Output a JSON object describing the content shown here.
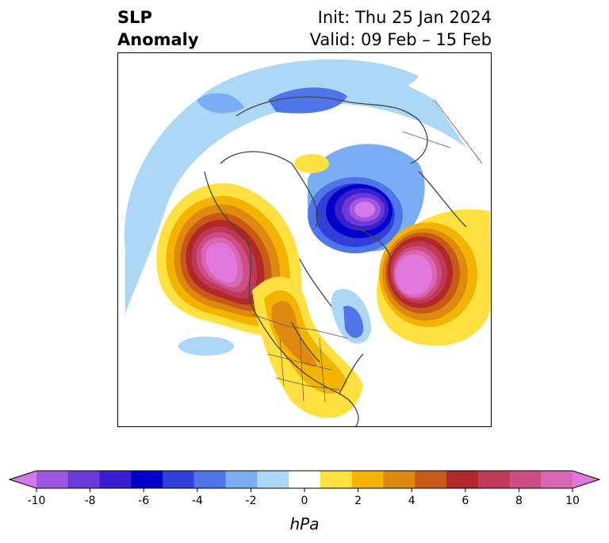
{
  "title": {
    "left_line1": "SLP",
    "left_line2": "Anomaly",
    "right_line1": "Init: Thu 25 Jan 2024",
    "right_line2": "Valid: 09 Feb – 15 Feb"
  },
  "colorbar": {
    "unit": "hPa",
    "ticks": [
      "-10",
      "-8",
      "-6",
      "-4",
      "-2",
      "0",
      "2",
      "4",
      "6",
      "8",
      "10"
    ],
    "colors": [
      "#d479e8",
      "#9d57e0",
      "#6a3ad8",
      "#3a1fd0",
      "#0000c8",
      "#2f3fd8",
      "#4f75e8",
      "#7aaef2",
      "#acd8f6",
      "#ffffff",
      "#fee040",
      "#f2b400",
      "#de8a10",
      "#c85a18",
      "#b02828",
      "#c03855",
      "#cc4e85",
      "#d866b2",
      "#e078dc"
    ],
    "extend": "both"
  },
  "map": {
    "projection": "north-polar-stereographic",
    "features": [
      "coastlines",
      "country-borders",
      "us-state-borders"
    ]
  }
}
